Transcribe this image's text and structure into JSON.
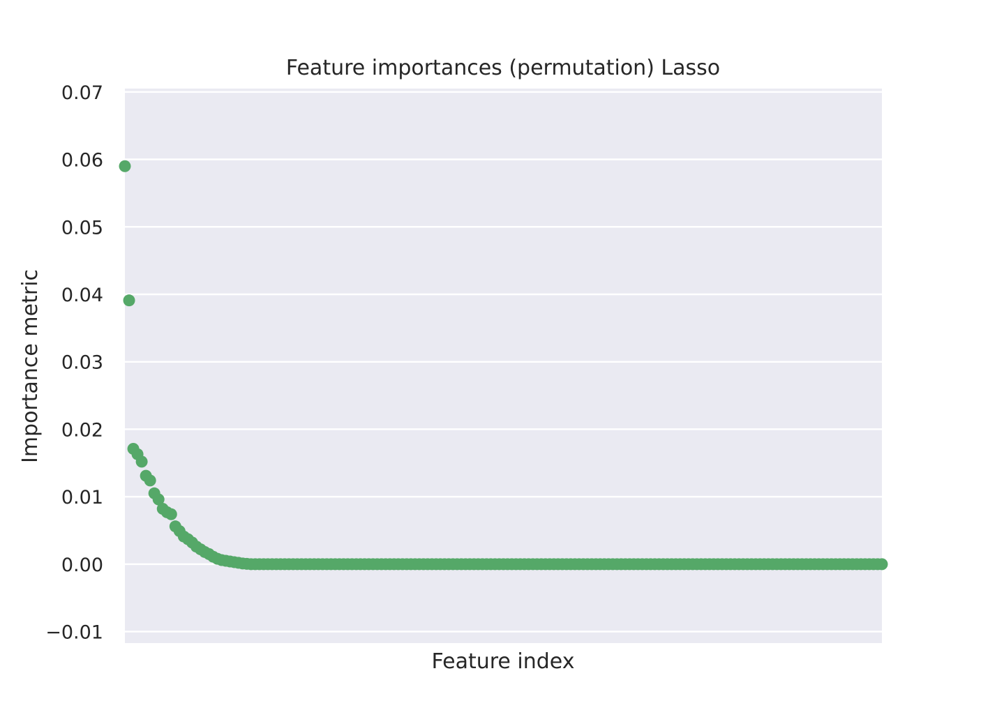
{
  "chart_data": {
    "type": "scatter",
    "title": "Feature importances (permutation) Lasso",
    "xlabel": "Feature index",
    "ylabel": "Importance metric",
    "ylim": [
      -0.0117,
      0.0705
    ],
    "xlim": [
      0,
      180
    ],
    "yticks": [
      -0.01,
      0.0,
      0.01,
      0.02,
      0.03,
      0.04,
      0.05,
      0.06,
      0.07
    ],
    "ytick_labels": [
      "−0.01",
      "0.00",
      "0.01",
      "0.02",
      "0.03",
      "0.04",
      "0.05",
      "0.06",
      "0.07"
    ],
    "xticks_visible": false,
    "grid": true,
    "colors": {
      "background": "#eaeaf2",
      "grid": "#ffffff",
      "points": "#55a868",
      "text": "#262626"
    },
    "series": [
      {
        "x_start": 0,
        "x_step": 1,
        "values": [
          0.059,
          0.0391,
          0.0171,
          0.0163,
          0.0152,
          0.0131,
          0.0124,
          0.0105,
          0.0096,
          0.0082,
          0.0077,
          0.0074,
          0.0056,
          0.0049,
          0.0041,
          0.0037,
          0.0032,
          0.0026,
          0.0022,
          0.0018,
          0.0015,
          0.0011,
          0.0008,
          0.0006,
          0.0005,
          0.0004,
          0.0003,
          0.0002,
          0.0001,
          5e-05,
          0.0,
          0.0,
          0.0,
          0.0,
          0.0,
          0.0,
          0.0,
          0.0,
          0.0,
          0.0,
          0.0,
          0.0,
          0.0,
          0.0,
          0.0,
          0.0,
          0.0,
          0.0,
          0.0,
          0.0,
          0.0,
          0.0,
          0.0,
          0.0,
          0.0,
          0.0,
          0.0,
          0.0,
          0.0,
          0.0,
          0.0,
          0.0,
          0.0,
          0.0,
          0.0,
          0.0,
          0.0,
          0.0,
          0.0,
          0.0,
          0.0,
          0.0,
          0.0,
          0.0,
          0.0,
          0.0,
          0.0,
          0.0,
          0.0,
          0.0,
          0.0,
          0.0,
          0.0,
          0.0,
          0.0,
          0.0,
          0.0,
          0.0,
          0.0,
          0.0,
          0.0,
          0.0,
          0.0,
          0.0,
          0.0,
          0.0,
          0.0,
          0.0,
          0.0,
          0.0,
          0.0,
          0.0,
          0.0,
          0.0,
          0.0,
          0.0,
          0.0,
          0.0,
          0.0,
          0.0,
          0.0,
          0.0,
          0.0,
          0.0,
          0.0,
          0.0,
          0.0,
          0.0,
          0.0,
          0.0,
          0.0,
          0.0,
          0.0,
          0.0,
          0.0,
          0.0,
          0.0,
          0.0,
          0.0,
          0.0,
          0.0,
          0.0,
          0.0,
          0.0,
          0.0,
          0.0,
          0.0,
          0.0,
          0.0,
          0.0,
          0.0,
          0.0,
          0.0,
          0.0,
          0.0,
          0.0,
          0.0,
          0.0,
          0.0,
          0.0,
          0.0,
          0.0,
          0.0,
          0.0,
          0.0,
          0.0,
          0.0,
          0.0,
          0.0,
          0.0,
          0.0,
          0.0,
          0.0,
          0.0,
          0.0,
          0.0,
          0.0,
          0.0,
          0.0,
          0.0,
          0.0,
          0.0,
          0.0,
          0.0,
          0.0,
          0.0,
          0.0,
          0.0,
          0.0,
          0.0,
          0.0
        ]
      }
    ]
  }
}
